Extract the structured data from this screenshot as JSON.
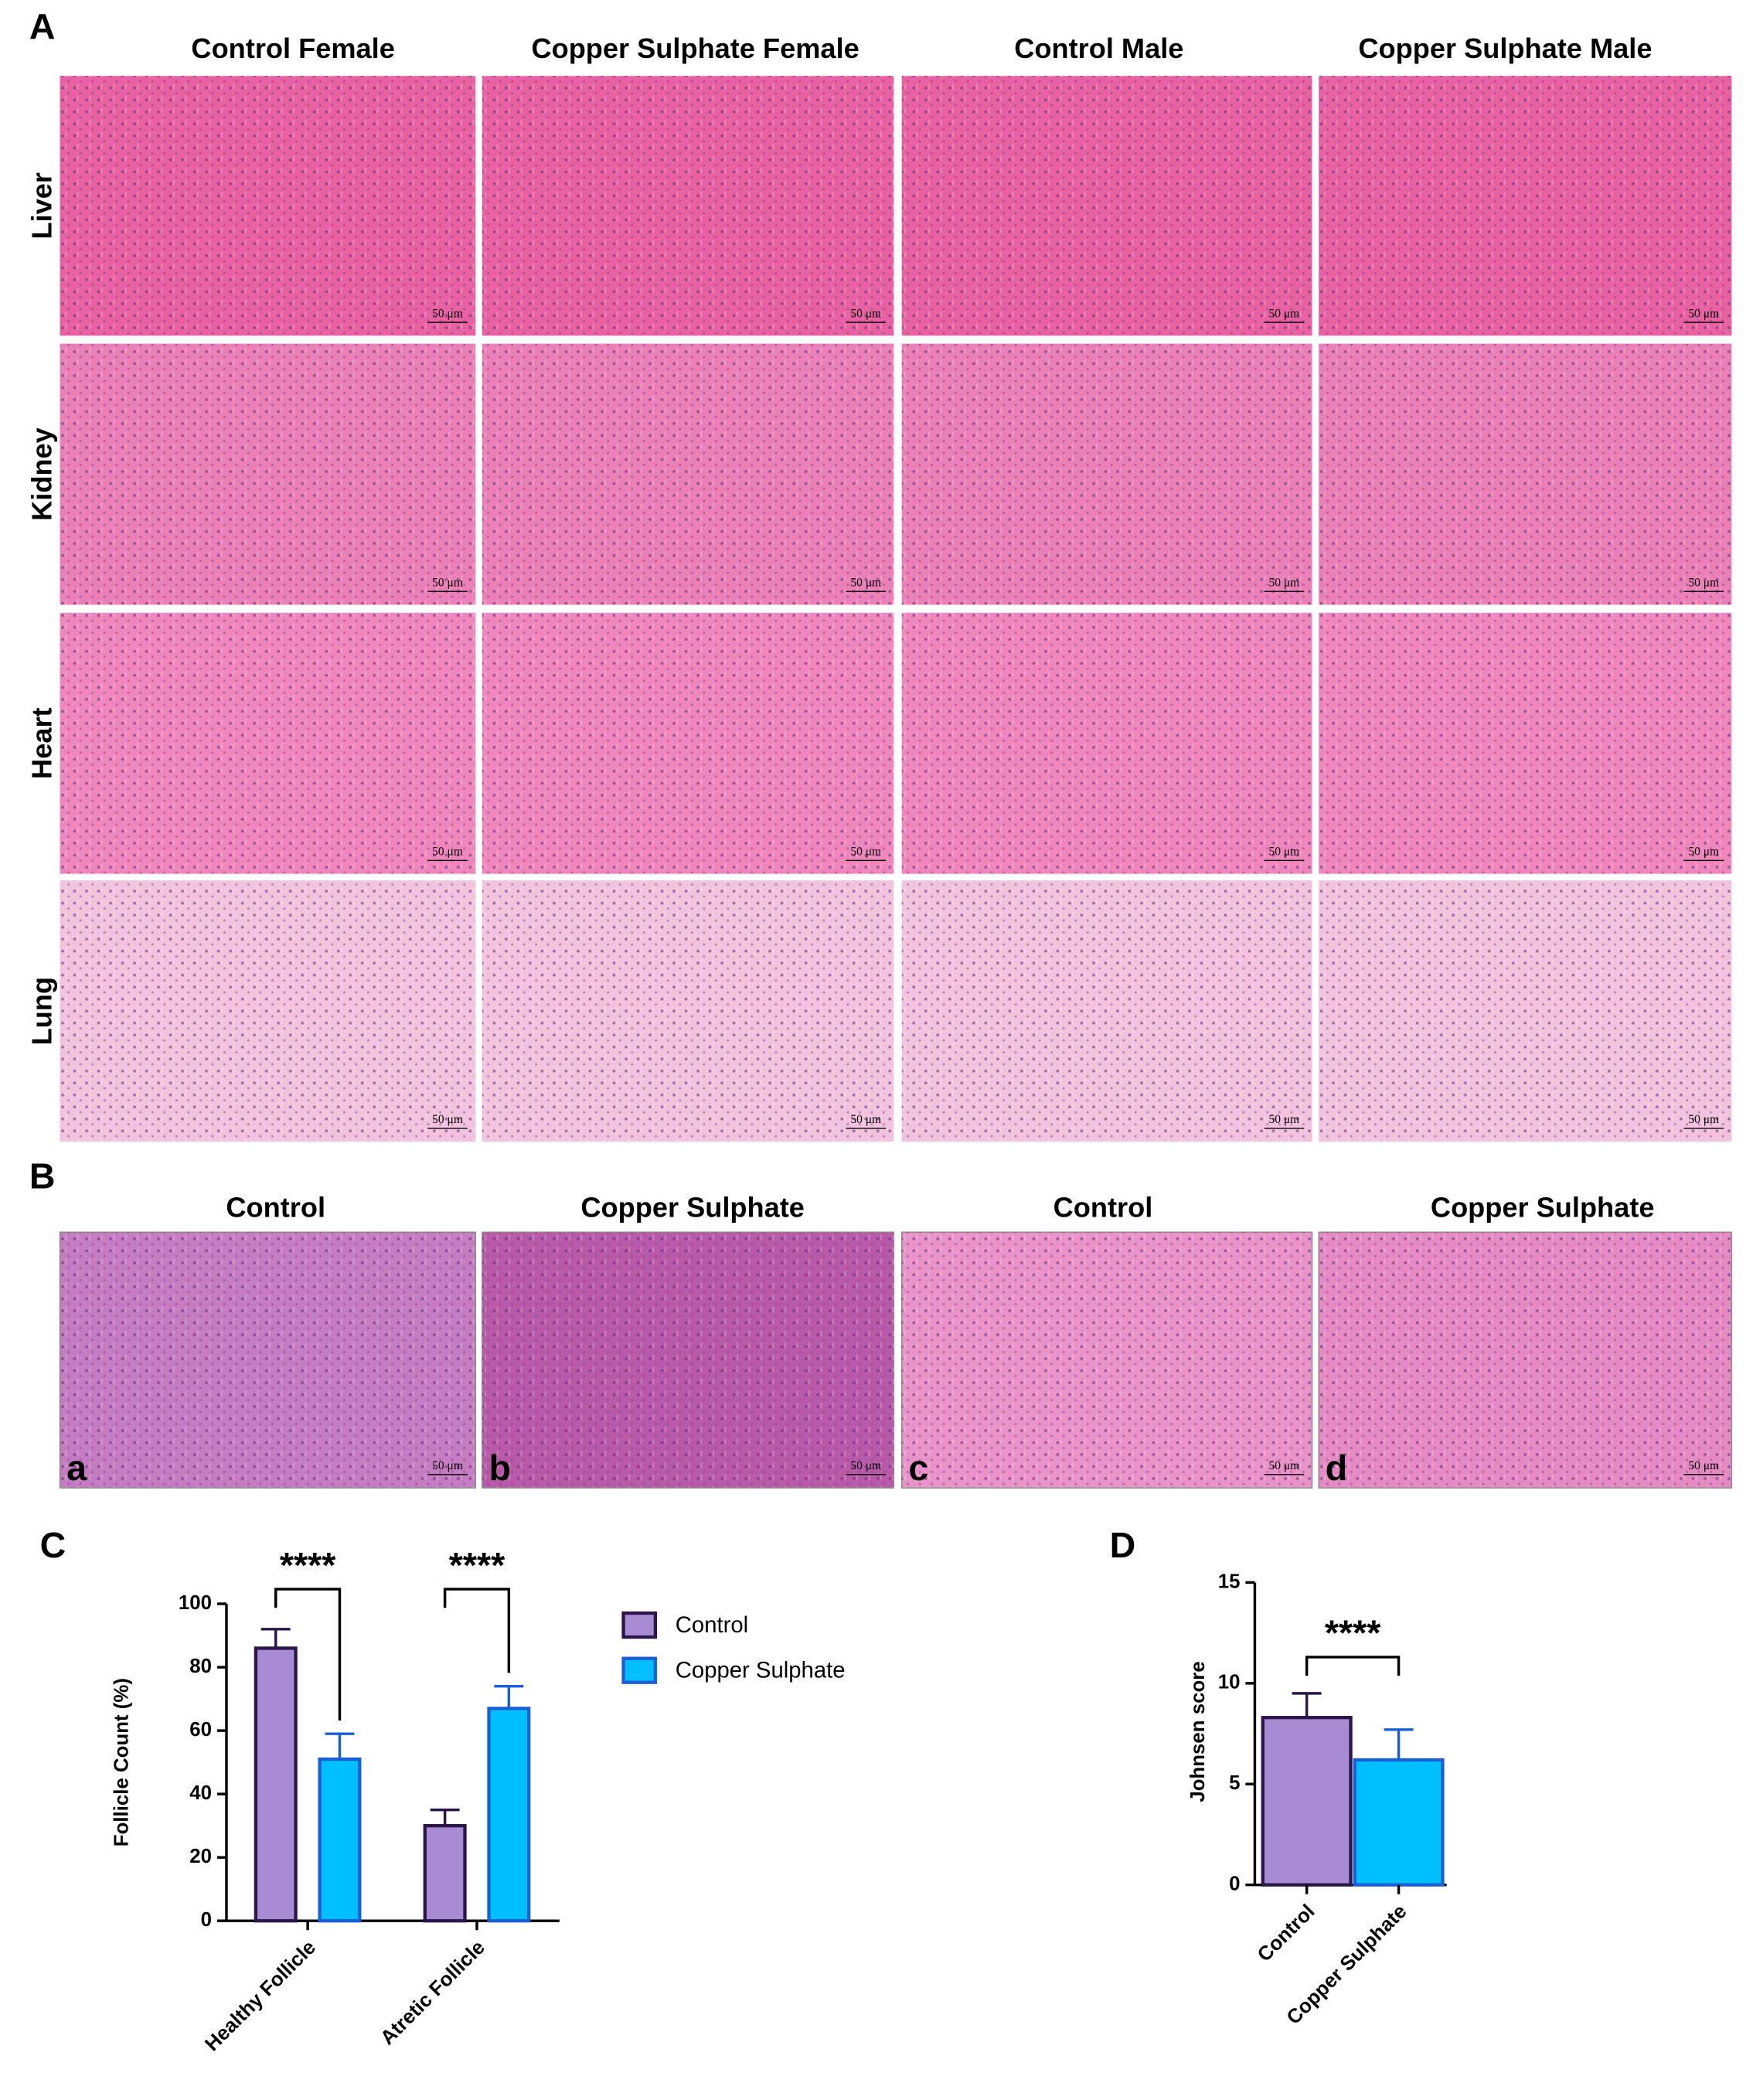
{
  "panel_labels": [
    "A",
    "B",
    "C",
    "D"
  ],
  "panel_a": {
    "columns": [
      "Control Female",
      "Copper Sulphate Female",
      "Control Male",
      "Copper Sulphate Male"
    ],
    "rows": [
      "Liver",
      "Kidney",
      "Heart",
      "Lung"
    ],
    "scale_bars": [
      [
        "50 μm",
        "50 μm",
        "50 μm",
        "50 μm"
      ],
      [
        "50 μm",
        "50 μm",
        "50 μm",
        "50 μm"
      ],
      [
        "50 μm",
        "50 μm",
        "50 μm",
        "50 μm"
      ],
      [
        "50 μm",
        "50 μm",
        "50 μm",
        "50 μm"
      ]
    ]
  },
  "panel_b": {
    "columns": [
      "Control",
      "Copper Sulphate",
      "Control",
      "Copper Sulphate"
    ],
    "image_labels": [
      "a",
      "b",
      "c",
      "d"
    ],
    "scale_bars": [
      "50 μm",
      "50 μm",
      "50 μm",
      "50 μm"
    ]
  },
  "chart_data": [
    {
      "type": "grouped_bar",
      "y_label": "Follicle Count (%)",
      "categories": [
        "Healthy Follicle",
        "Atretic Follicle"
      ],
      "series": [
        {
          "name": "Control",
          "color": "#a98bd4",
          "edge_color": "#2a1648",
          "values": [
            86,
            30
          ],
          "errors": [
            6,
            5
          ]
        },
        {
          "name": "Copper Sulphate",
          "color": "#00bfff",
          "edge_color": "#1a5fd6",
          "values": [
            51,
            67
          ],
          "errors": [
            8,
            7
          ]
        }
      ],
      "ylim": [
        0,
        100
      ],
      "yticks": [
        0,
        20,
        40,
        60,
        80,
        100
      ],
      "annotations": [
        "****",
        "****"
      ]
    },
    {
      "type": "bar",
      "y_label": "Johnsen score",
      "categories": [
        "Control",
        "Copper Sulphate"
      ],
      "values": [
        8.3,
        6.2
      ],
      "errors": [
        1.2,
        1.5
      ],
      "colors": [
        "#a98bd4",
        "#00bfff"
      ],
      "edge_colors": [
        "#2a1648",
        "#1a5fd6"
      ],
      "ylim": [
        0,
        15
      ],
      "yticks": [
        0,
        5,
        10,
        15
      ],
      "annotations": [
        "****"
      ]
    }
  ]
}
